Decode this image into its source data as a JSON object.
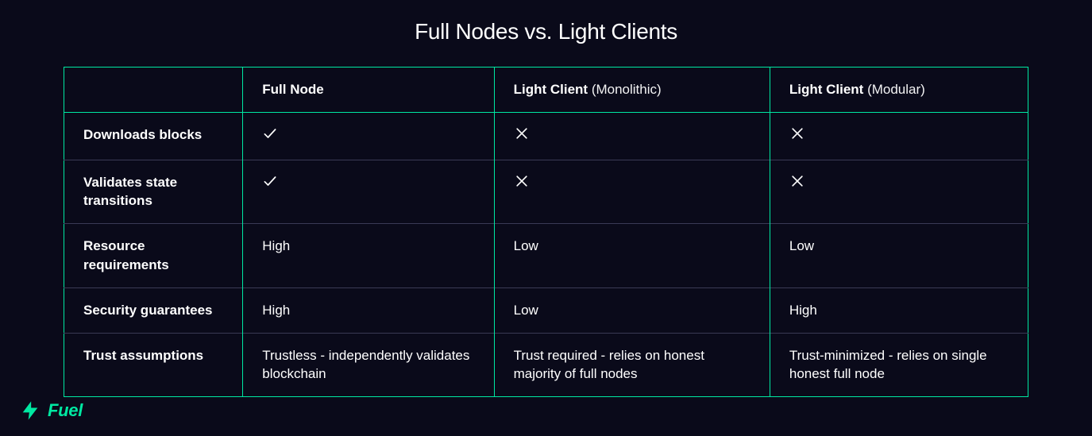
{
  "title": "Full Nodes vs. Light Clients",
  "colors": {
    "background": "#0a0a1a",
    "accent": "#00e8a2",
    "text": "#ffffff",
    "row_divider": "#3a3a55"
  },
  "typography": {
    "title_fontsize": 28,
    "cell_fontsize": 17,
    "logo_fontsize": 22,
    "font_family": "-apple-system, BlinkMacSystemFont, Segoe UI, Helvetica, Arial, sans-serif"
  },
  "table": {
    "header": {
      "col0": "",
      "col1": "Full Node",
      "col2_main": "Light Client",
      "col2_sub": " (Monolithic)",
      "col3_main": "Light Client",
      "col3_sub": " (Modular)"
    },
    "rows": [
      {
        "label": "Downloads blocks",
        "c1_icon": "check",
        "c2_icon": "cross",
        "c3_icon": "cross"
      },
      {
        "label": "Validates state transitions",
        "c1_icon": "check",
        "c2_icon": "cross",
        "c3_icon": "cross"
      },
      {
        "label": "Resource requirements",
        "c1_text": "High",
        "c2_text": "Low",
        "c3_text": "Low"
      },
      {
        "label": "Security guarantees",
        "c1_text": "High",
        "c2_text": "Low",
        "c3_text": "High"
      },
      {
        "label": "Trust assumptions",
        "c1_text": "Trustless - independently validates blockchain",
        "c2_text": "Trust required - relies on honest majority of full nodes",
        "c3_text": "Trust-minimized - relies on single honest full node"
      }
    ]
  },
  "logo": {
    "text": "Fuel",
    "mark_color": "#00e8a2"
  }
}
